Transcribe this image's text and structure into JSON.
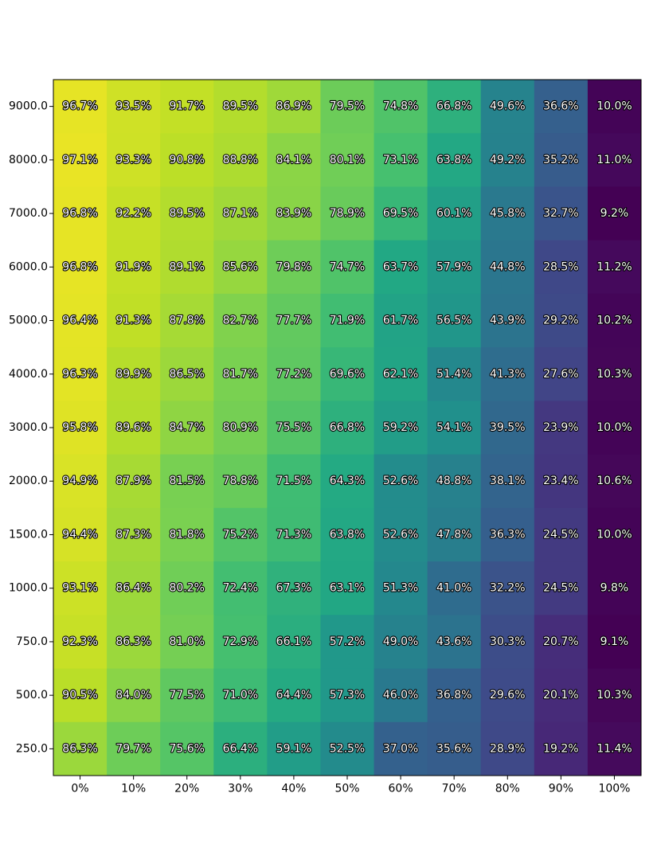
{
  "chart_data": {
    "type": "heatmap",
    "title": "",
    "xlabel": "",
    "ylabel": "",
    "x_categories": [
      "0%",
      "10%",
      "20%",
      "30%",
      "40%",
      "50%",
      "60%",
      "70%",
      "80%",
      "90%",
      "100%"
    ],
    "y_categories": [
      "9000.0",
      "8000.0",
      "7000.0",
      "6000.0",
      "5000.0",
      "4000.0",
      "3000.0",
      "2000.0",
      "1500.0",
      "1000.0",
      "750.0",
      "500.0",
      "250.0"
    ],
    "values": [
      [
        96.7,
        93.5,
        91.7,
        89.5,
        86.9,
        79.5,
        74.8,
        66.8,
        49.6,
        36.6,
        10.0
      ],
      [
        97.1,
        93.3,
        90.8,
        88.8,
        84.1,
        80.1,
        73.1,
        63.8,
        49.2,
        35.2,
        11.0
      ],
      [
        96.8,
        92.2,
        89.5,
        87.1,
        83.9,
        78.9,
        69.5,
        60.1,
        45.8,
        32.7,
        9.2
      ],
      [
        96.8,
        91.9,
        89.1,
        85.6,
        79.8,
        74.7,
        63.7,
        57.9,
        44.8,
        28.5,
        11.2
      ],
      [
        96.4,
        91.3,
        87.8,
        82.7,
        77.7,
        71.9,
        61.7,
        56.5,
        43.9,
        29.2,
        10.2
      ],
      [
        96.3,
        89.9,
        86.5,
        81.7,
        77.2,
        69.6,
        62.1,
        51.4,
        41.3,
        27.6,
        10.3
      ],
      [
        95.8,
        89.6,
        84.7,
        80.9,
        75.5,
        66.8,
        59.2,
        54.1,
        39.5,
        23.9,
        10.0
      ],
      [
        94.9,
        87.9,
        81.5,
        78.8,
        71.5,
        64.3,
        52.6,
        48.8,
        38.1,
        23.4,
        10.6
      ],
      [
        94.4,
        87.3,
        81.8,
        75.2,
        71.3,
        63.8,
        52.6,
        47.8,
        36.3,
        24.5,
        10.0
      ],
      [
        93.1,
        86.4,
        80.2,
        72.4,
        67.3,
        63.1,
        51.3,
        41.0,
        32.2,
        24.5,
        9.8
      ],
      [
        92.3,
        86.3,
        81.0,
        72.9,
        66.1,
        57.2,
        49.0,
        43.6,
        30.3,
        20.7,
        9.1
      ],
      [
        90.5,
        84.0,
        77.5,
        71.0,
        64.4,
        57.3,
        46.0,
        36.8,
        29.6,
        20.1,
        10.3
      ],
      [
        86.3,
        79.7,
        75.6,
        66.4,
        59.1,
        52.5,
        37.0,
        35.6,
        28.9,
        19.2,
        11.4
      ]
    ],
    "labels": [
      [
        "96.7%",
        "93.5%",
        "91.7%",
        "89.5%",
        "86.9%",
        "79.5%",
        "74.8%",
        "66.8%",
        "49.6%",
        "36.6%",
        "10.0%"
      ],
      [
        "97.1%",
        "93.3%",
        "90.8%",
        "88.8%",
        "84.1%",
        "80.1%",
        "73.1%",
        "63.8%",
        "49.2%",
        "35.2%",
        "11.0%"
      ],
      [
        "96.8%",
        "92.2%",
        "89.5%",
        "87.1%",
        "83.9%",
        "78.9%",
        "69.5%",
        "60.1%",
        "45.8%",
        "32.7%",
        "9.2%"
      ],
      [
        "96.8%",
        "91.9%",
        "89.1%",
        "85.6%",
        "79.8%",
        "74.7%",
        "63.7%",
        "57.9%",
        "44.8%",
        "28.5%",
        "11.2%"
      ],
      [
        "96.4%",
        "91.3%",
        "87.8%",
        "82.7%",
        "77.7%",
        "71.9%",
        "61.7%",
        "56.5%",
        "43.9%",
        "29.2%",
        "10.2%"
      ],
      [
        "96.3%",
        "89.9%",
        "86.5%",
        "81.7%",
        "77.2%",
        "69.6%",
        "62.1%",
        "51.4%",
        "41.3%",
        "27.6%",
        "10.3%"
      ],
      [
        "95.8%",
        "89.6%",
        "84.7%",
        "80.9%",
        "75.5%",
        "66.8%",
        "59.2%",
        "54.1%",
        "39.5%",
        "23.9%",
        "10.0%"
      ],
      [
        "94.9%",
        "87.9%",
        "81.5%",
        "78.8%",
        "71.5%",
        "64.3%",
        "52.6%",
        "48.8%",
        "38.1%",
        "23.4%",
        "10.6%"
      ],
      [
        "94.4%",
        "87.3%",
        "81.8%",
        "75.2%",
        "71.3%",
        "63.8%",
        "52.6%",
        "47.8%",
        "36.3%",
        "24.5%",
        "10.0%"
      ],
      [
        "93.1%",
        "86.4%",
        "80.2%",
        "72.4%",
        "67.3%",
        "63.1%",
        "51.3%",
        "41.0%",
        "32.2%",
        "24.5%",
        "9.8%"
      ],
      [
        "92.3%",
        "86.3%",
        "81.0%",
        "72.9%",
        "66.1%",
        "57.2%",
        "49.0%",
        "43.6%",
        "30.3%",
        "20.7%",
        "9.1%"
      ],
      [
        "90.5%",
        "84.0%",
        "77.5%",
        "71.0%",
        "64.4%",
        "57.3%",
        "46.0%",
        "36.8%",
        "29.6%",
        "20.1%",
        "10.3%"
      ],
      [
        "86.3%",
        "79.7%",
        "75.6%",
        "66.4%",
        "59.1%",
        "52.5%",
        "37.0%",
        "35.6%",
        "28.9%",
        "19.2%",
        "11.4%"
      ]
    ],
    "colormap": "viridis",
    "value_range": [
      9.1,
      97.1
    ],
    "colorbar": false,
    "grid": false
  }
}
